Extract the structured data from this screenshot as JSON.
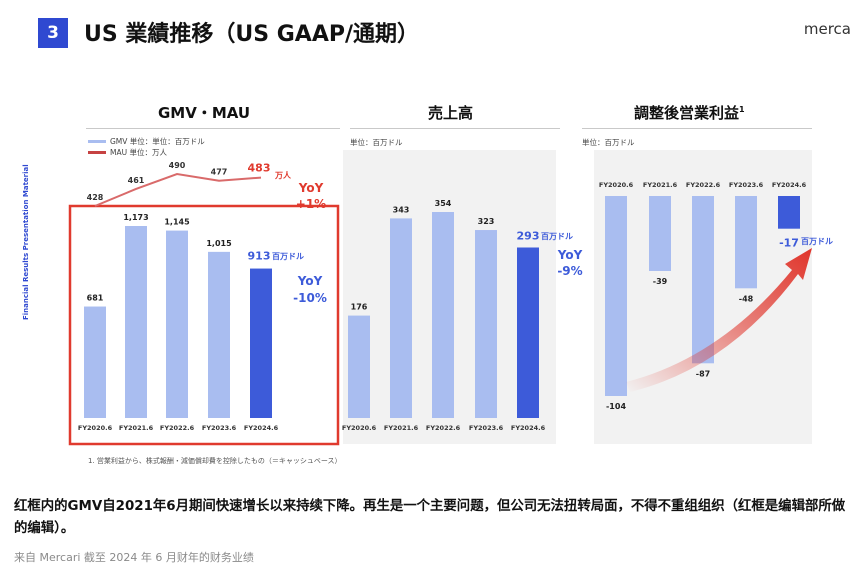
{
  "header": {
    "slide_number": "3",
    "title": "US 業績推移（US GAAP/通期）",
    "brand": "merca",
    "side_label": "Financial Results Presentation Material"
  },
  "panels": {
    "gmv": {
      "title": "GMV・MAU",
      "legend_gmv": "GMV 単位：単位：百万ドル",
      "legend_mau": "MAU 単位：万人"
    },
    "revenue": {
      "title": "売上高",
      "unit": "単位：百万ドル"
    },
    "op": {
      "title": "調整後営業利益",
      "title_sup": "1",
      "unit": "単位：百万ドル"
    }
  },
  "chart_data": [
    {
      "type": "bar",
      "name": "gmv-mau",
      "categories": [
        "FY2020.6",
        "FY2021.6",
        "FY2022.6",
        "FY2023.6",
        "FY2024.6"
      ],
      "series": [
        {
          "name": "GMV",
          "values": [
            681,
            1173,
            1145,
            1015,
            913
          ]
        },
        {
          "name": "MAU",
          "values": [
            428,
            461,
            490,
            477,
            483
          ]
        }
      ],
      "labels": [
        "681",
        "1,173",
        "1,145",
        "1,015",
        "913"
      ],
      "mau_labels": [
        "428",
        "461",
        "490",
        "477",
        "483"
      ],
      "latest_unit": "百万ドル",
      "mau_unit": "万人",
      "yoy_gmv": [
        "YoY",
        "-10%"
      ],
      "yoy_mau": [
        "YoY",
        "+1%"
      ],
      "highlight_box": true
    },
    {
      "type": "bar",
      "name": "revenue",
      "categories": [
        "FY2020.6",
        "FY2021.6",
        "FY2022.6",
        "FY2023.6",
        "FY2024.6"
      ],
      "values": [
        176,
        343,
        354,
        323,
        293
      ],
      "labels": [
        "176",
        "343",
        "354",
        "323",
        "293"
      ],
      "latest_unit": "百万ドル",
      "yoy": [
        "YoY",
        "-9%"
      ]
    },
    {
      "type": "bar",
      "name": "adjusted-operating-income",
      "categories": [
        "FY2020.6",
        "FY2021.6",
        "FY2022.6",
        "FY2023.6",
        "FY2024.6"
      ],
      "values": [
        -104,
        -39,
        -87,
        -48,
        -17
      ],
      "labels": [
        "-104",
        "-39",
        "-87",
        "-48",
        "-17"
      ],
      "latest_unit": "百万ドル",
      "arrow": true
    }
  ],
  "colors": {
    "bar_light": "#a9bdf0",
    "bar_latest": "#3d5bd9",
    "mau_line": "#d96a6a",
    "highlight": "#e03a2e",
    "arrow": "#e0342a",
    "accent_blue": "#2f49d1"
  },
  "footnote": "1. 営業利益から、株式報酬・減価償却費を控除したもの（＝キャッシュベース）",
  "caption": "红框内的GMV自2021年6月期间快速增长以来持续下降。再生是一个主要问题，但公司无法扭转局面，不得不重组组织（红框是编辑部所做的编辑）。",
  "source": "来自 Mercari 截至 2024 年 6 月财年的财务业绩"
}
